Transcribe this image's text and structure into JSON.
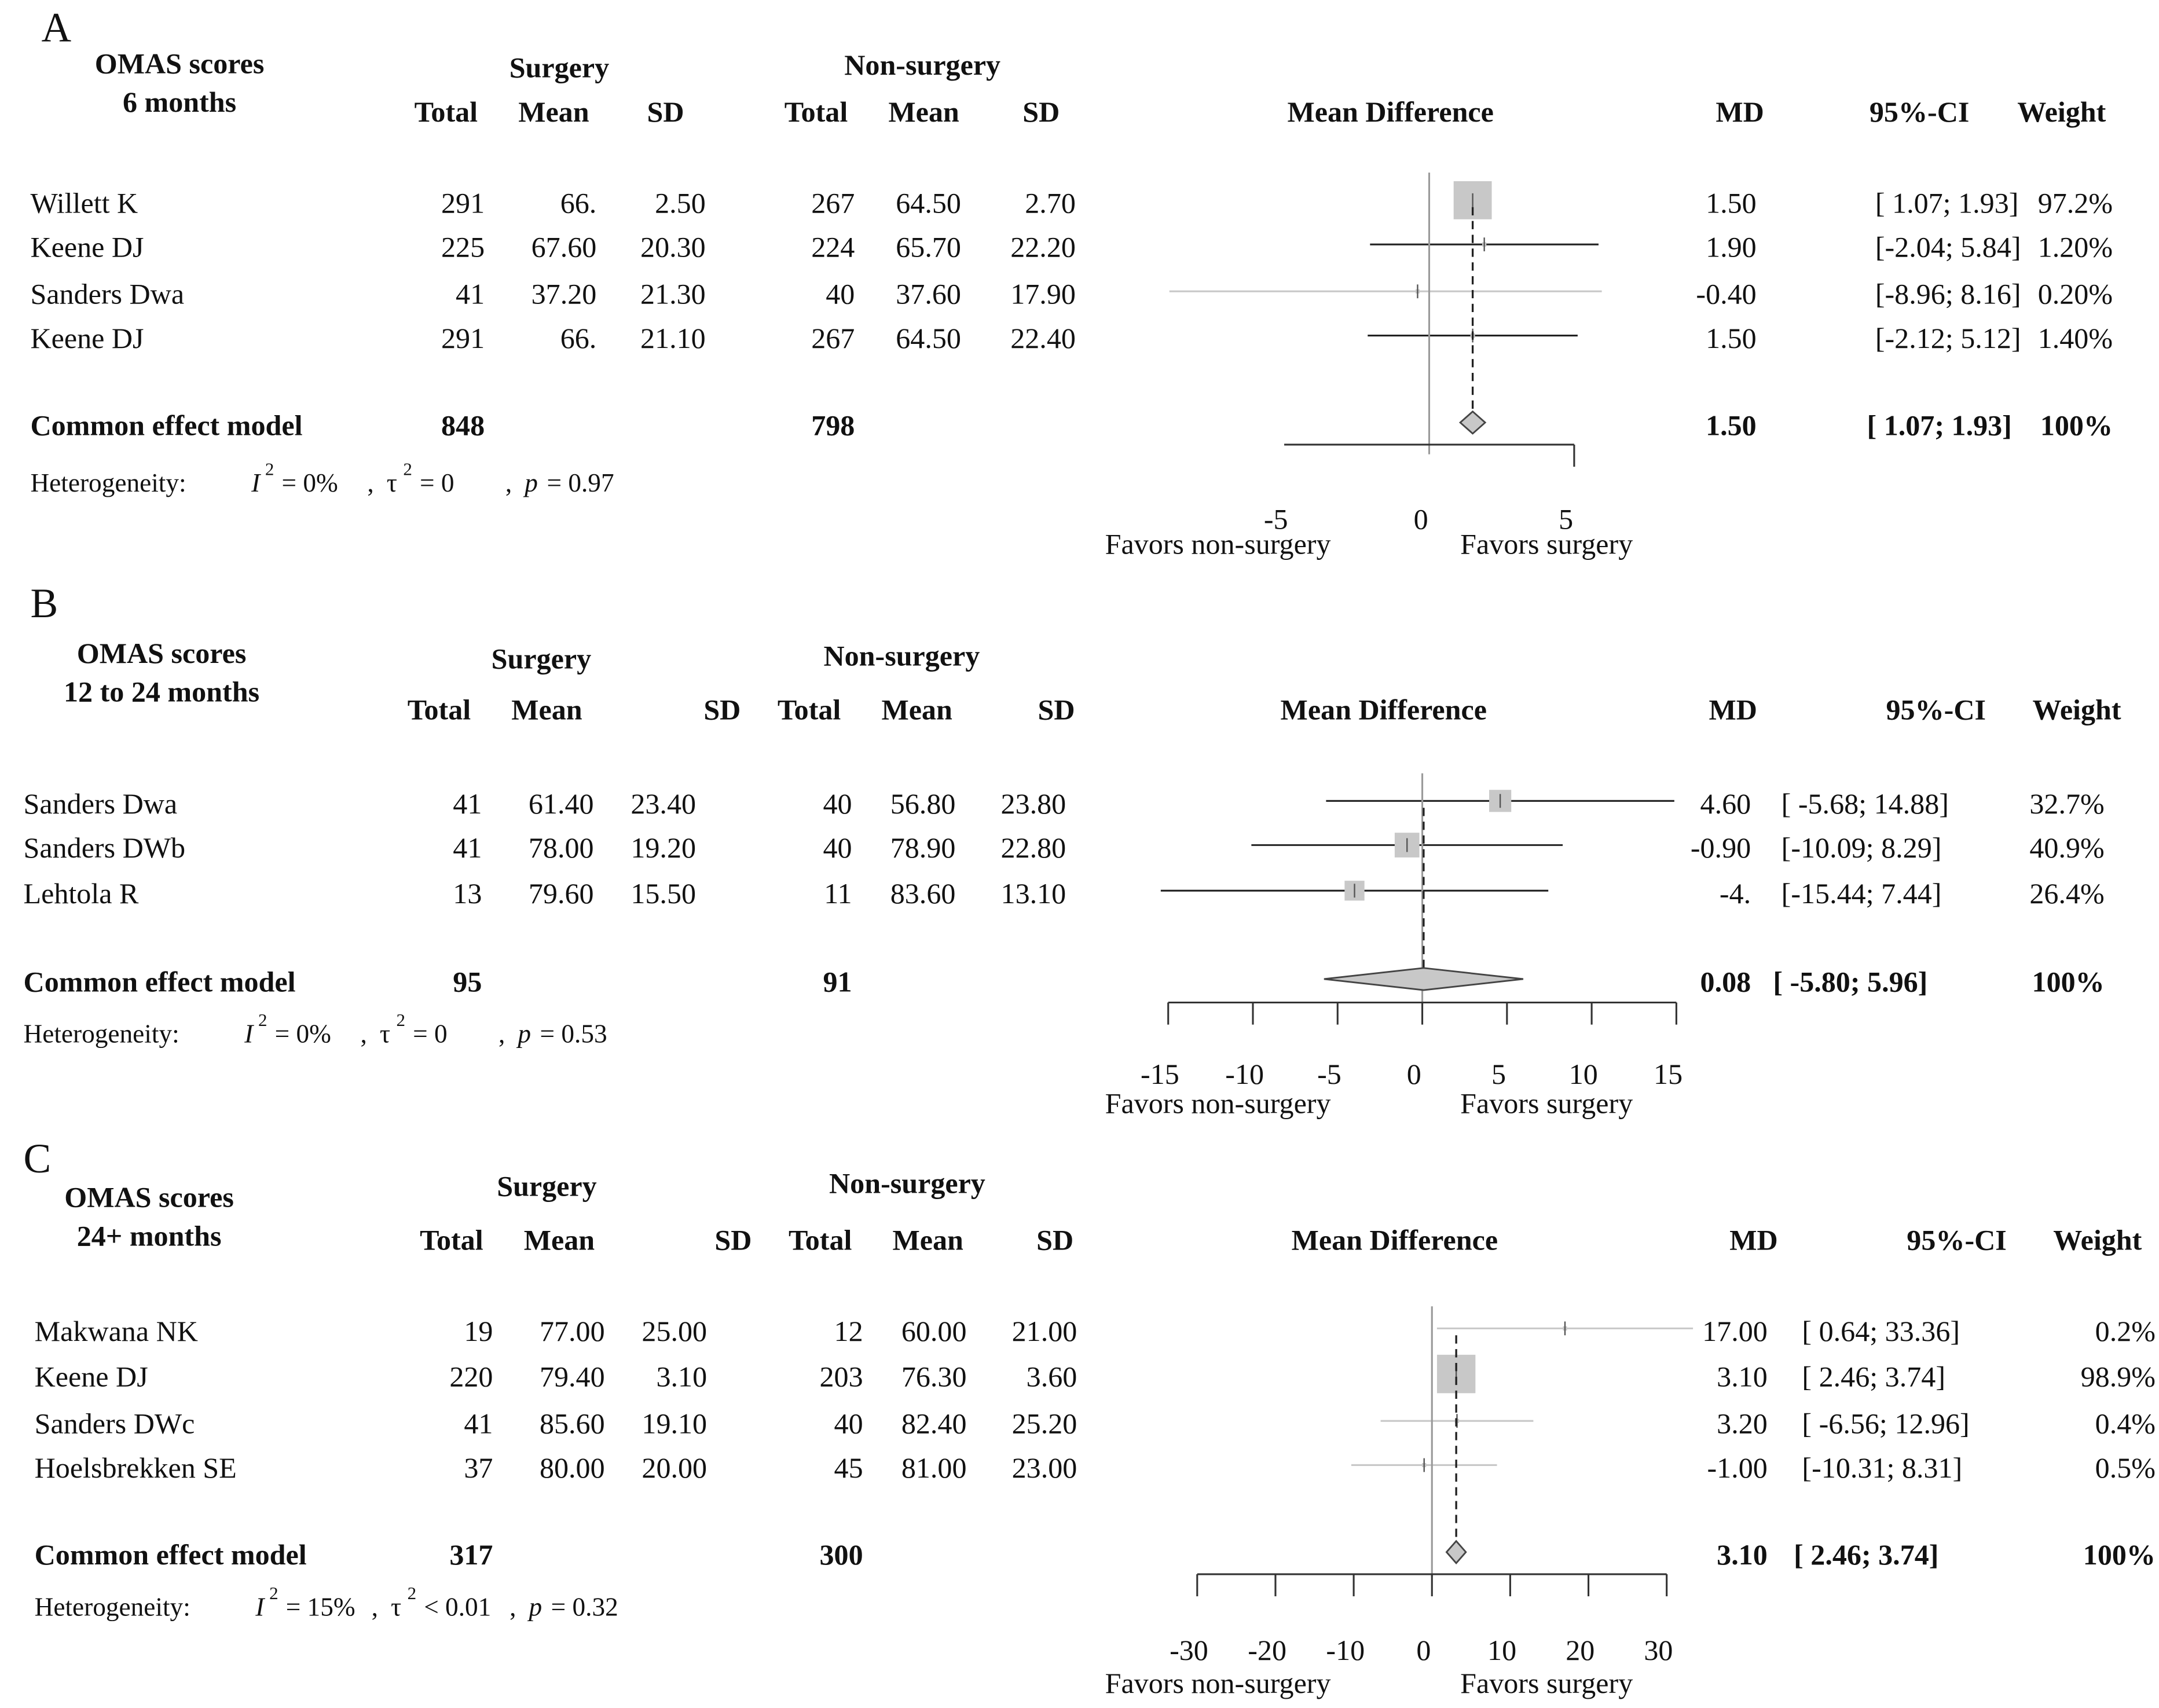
{
  "chart_data": [
    {
      "type": "forest",
      "panel_label": "A",
      "title_lines": [
        "OMAS scores",
        "6 months"
      ],
      "group1": "Surgery",
      "group2": "Non-surgery",
      "columns": {
        "total": "Total",
        "mean": "Mean",
        "sd": "SD",
        "md_header": "Mean Difference",
        "md": "MD",
        "ci": "95%-CI",
        "weight": "Weight"
      },
      "studies": [
        {
          "name": "Willett K",
          "n1": "291",
          "m1": "66.",
          "sd1": "2.50",
          "n2": "267",
          "m2": "64.50",
          "sd2": "2.70",
          "md_text": "1.50",
          "ci_text": "[ 1.07; 1.93]",
          "weight_text": "97.2%",
          "md": 1.5,
          "lo": 1.07,
          "hi": 1.93,
          "w": 97.2
        },
        {
          "name": "Keene DJ",
          "n1": "225",
          "m1": "67.60",
          "sd1": "20.30",
          "n2": "224",
          "m2": "65.70",
          "sd2": "22.20",
          "md_text": "1.90",
          "ci_text": "[-2.04; 5.84]",
          "weight_text": "1.20%",
          "md": 1.9,
          "lo": -2.04,
          "hi": 5.84,
          "w": 1.2
        },
        {
          "name": "Sanders Dwa",
          "n1": "41",
          "m1": "37.20",
          "sd1": "21.30",
          "n2": "40",
          "m2": "37.60",
          "sd2": "17.90",
          "md_text": "-0.40",
          "ci_text": "[-8.96; 8.16]",
          "weight_text": "0.20%",
          "md": -0.4,
          "lo": -8.96,
          "hi": 8.16,
          "w": 0.2
        },
        {
          "name": "Keene DJ",
          "n1": "291",
          "m1": "66.",
          "sd1": "21.10",
          "n2": "267",
          "m2": "64.50",
          "sd2": "22.40",
          "md_text": "1.50",
          "ci_text": "[-2.12; 5.12]",
          "weight_text": "1.40%",
          "md": 1.5,
          "lo": -2.12,
          "hi": 5.12,
          "w": 1.4
        }
      ],
      "pooled": {
        "label": "Common effect model",
        "n1": "848",
        "n2": "798",
        "md_text": "1.50",
        "ci_text": "[ 1.07; 1.93]",
        "weight_text": "100%",
        "md": 1.5,
        "lo": 1.07,
        "hi": 1.93
      },
      "heterogeneity": {
        "label": "Heterogeneity:",
        "i2": "= 0%",
        "tau2": "= 0",
        "p": "= 0.97"
      },
      "xlim": [
        -5,
        5
      ],
      "ticks": [
        -5,
        0,
        5
      ],
      "favors_left": "Favors non-surgery",
      "favors_right": "Favors surgery"
    },
    {
      "type": "forest",
      "panel_label": "B",
      "title_lines": [
        "OMAS scores",
        "12 to 24 months"
      ],
      "group1": "Surgery",
      "group2": "Non-surgery",
      "columns": {
        "total": "Total",
        "mean": "Mean",
        "sd": "SD",
        "md_header": "Mean Difference",
        "md": "MD",
        "ci": "95%-CI",
        "weight": "Weight"
      },
      "studies": [
        {
          "name": "Sanders Dwa",
          "n1": "41",
          "m1": "61.40",
          "sd1": "23.40",
          "n2": "40",
          "m2": "56.80",
          "sd2": "23.80",
          "md_text": "4.60",
          "ci_text": "[ -5.68; 14.88]",
          "weight_text": "32.7%",
          "md": 4.6,
          "lo": -5.68,
          "hi": 14.88,
          "w": 32.7
        },
        {
          "name": "Sanders DWb",
          "n1": "41",
          "m1": "78.00",
          "sd1": "19.20",
          "n2": "40",
          "m2": "78.90",
          "sd2": "22.80",
          "md_text": "-0.90",
          "ci_text": "[-10.09; 8.29]",
          "weight_text": "40.9%",
          "md": -0.9,
          "lo": -10.09,
          "hi": 8.29,
          "w": 40.9
        },
        {
          "name": "Lehtola R",
          "n1": "13",
          "m1": "79.60",
          "sd1": "15.50",
          "n2": "11",
          "m2": "83.60",
          "sd2": "13.10",
          "md_text": "-4.",
          "ci_text": "[-15.44; 7.44]",
          "weight_text": "26.4%",
          "md": -4.0,
          "lo": -15.44,
          "hi": 7.44,
          "w": 26.4
        }
      ],
      "pooled": {
        "label": "Common effect model",
        "n1": "95",
        "n2": "91",
        "md_text": "0.08",
        "ci_text": "[ -5.80; 5.96]",
        "weight_text": "100%",
        "md": 0.08,
        "lo": -5.8,
        "hi": 5.96
      },
      "heterogeneity": {
        "label": "Heterogeneity:",
        "i2": "= 0%",
        "tau2": "= 0",
        "p": "= 0.53"
      },
      "xlim": [
        -15,
        15
      ],
      "ticks": [
        -15,
        -10,
        -5,
        0,
        5,
        10,
        15
      ],
      "favors_left": "Favors non-surgery",
      "favors_right": "Favors surgery"
    },
    {
      "type": "forest",
      "panel_label": "C",
      "title_lines": [
        "OMAS scores",
        "24+ months"
      ],
      "group1": "Surgery",
      "group2": "Non-surgery",
      "columns": {
        "total": "Total",
        "mean": "Mean",
        "sd": "SD",
        "md_header": "Mean Difference",
        "md": "MD",
        "ci": "95%-CI",
        "weight": "Weight"
      },
      "studies": [
        {
          "name": "Makwana NK",
          "n1": "19",
          "m1": "77.00",
          "sd1": "25.00",
          "n2": "12",
          "m2": "60.00",
          "sd2": "21.00",
          "md_text": "17.00",
          "ci_text": "[ 0.64; 33.36]",
          "weight_text": "0.2%",
          "md": 17.0,
          "lo": 0.64,
          "hi": 33.36,
          "w": 0.2
        },
        {
          "name": "Keene DJ",
          "n1": "220",
          "m1": "79.40",
          "sd1": "3.10",
          "n2": "203",
          "m2": "76.30",
          "sd2": "3.60",
          "md_text": "3.10",
          "ci_text": "[ 2.46; 3.74]",
          "weight_text": "98.9%",
          "md": 3.1,
          "lo": 2.46,
          "hi": 3.74,
          "w": 98.9
        },
        {
          "name": "Sanders DWc",
          "n1": "41",
          "m1": "85.60",
          "sd1": "19.10",
          "n2": "40",
          "m2": "82.40",
          "sd2": "25.20",
          "md_text": "3.20",
          "ci_text": "[ -6.56; 12.96]",
          "weight_text": "0.4%",
          "md": 3.2,
          "lo": -6.56,
          "hi": 12.96,
          "w": 0.4
        },
        {
          "name": "Hoelsbrekken SE",
          "n1": "37",
          "m1": "80.00",
          "sd1": "20.00",
          "n2": "45",
          "m2": "81.00",
          "sd2": "23.00",
          "md_text": "-1.00",
          "ci_text": "[-10.31; 8.31]",
          "weight_text": "0.5%",
          "md": -1.0,
          "lo": -10.31,
          "hi": 8.31,
          "w": 0.5
        }
      ],
      "pooled": {
        "label": "Common effect model",
        "n1": "317",
        "n2": "300",
        "md_text": "3.10",
        "ci_text": "[ 2.46; 3.74]",
        "weight_text": "100%",
        "md": 3.1,
        "lo": 2.46,
        "hi": 3.74
      },
      "heterogeneity": {
        "label": "Heterogeneity:",
        "i2": "= 15%",
        "tau2": "< 0.01",
        "p": "= 0.32"
      },
      "xlim": [
        -30,
        30
      ],
      "ticks": [
        -30,
        -20,
        -10,
        0,
        10,
        20,
        30
      ],
      "favors_left": "Favors non-surgery",
      "favors_right": "Favors surgery"
    }
  ]
}
